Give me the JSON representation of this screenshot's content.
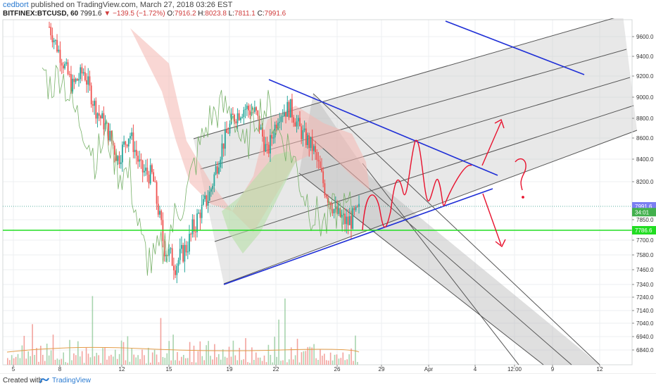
{
  "header": {
    "author": "cedbort",
    "published_text": "published on TradingView.com, March 27, 2018 03:26 EST",
    "symbol": "BITFINEX:BTCUSD, 60",
    "last": "7991.6",
    "change": "−139.5 (−1.72%)",
    "o_label": "O:",
    "o": "7916.2",
    "h_label": "H:",
    "h": "8023.8",
    "l_label": "L:",
    "l": "7811.1",
    "c_label": "C:",
    "c": "7991.6"
  },
  "footer": {
    "created": "Created with",
    "brand": "TradingView"
  },
  "colors": {
    "up": "#26a69a",
    "down": "#ef5350",
    "cloud_red": "#f4b6b1",
    "cloud_green": "#b7dfa8",
    "trend_blue": "#1f2fd6",
    "level_green": "#22dd22",
    "annotation_red": "#e8112d",
    "channel_fill": "#c8c8c8"
  },
  "chart_data": {
    "type": "candlestick",
    "title": "",
    "ylabel": "",
    "xlabel": "",
    "ylim": [
      6740,
      9860
    ],
    "y_scale": "linear",
    "x_ticks": [
      "5",
      "8",
      "12",
      "15",
      "19",
      "22",
      "26",
      "29",
      "Apr",
      "4",
      "12:00",
      "9",
      "12"
    ],
    "y_ticks": [
      "9600.0",
      "9400.0",
      "9200.0",
      "9000.0",
      "8800.0",
      "8600.0",
      "8400.0",
      "8200.0",
      "7850.0",
      "7700.0",
      "7580.0",
      "7460.0",
      "7340.0",
      "7240.0",
      "7140.0",
      "7040.0",
      "6940.0",
      "6840.0"
    ],
    "price_labels": [
      {
        "text": "7991.6",
        "value": 7991.6,
        "color": "#7b7ef2"
      },
      {
        "text": "34:01",
        "value": 7930,
        "color": "#42b04d"
      },
      {
        "text": "7786.6",
        "value": 7786.6,
        "color": "#22dd22"
      }
    ],
    "support_level": 7786.6,
    "current_price": 7991.6,
    "series": [
      {
        "name": "",
        "values": [
          9700,
          9400,
          9100,
          9250,
          8900,
          8700,
          8400,
          8650,
          8300,
          8250,
          7650,
          7500,
          7650,
          7900,
          8100,
          8500,
          8800,
          8900,
          8850,
          8450,
          8850,
          8900,
          8650,
          8500,
          8150,
          7920,
          7830,
          7950
        ]
      }
    ],
    "trendlines": [
      {
        "name": "",
        "from": [
          "Mar 19",
          7340
        ],
        "to": [
          "Apr 4",
          8160
        ]
      },
      {
        "name": "",
        "from": [
          "Mar 21",
          9150
        ],
        "to": [
          "Apr 4",
          8250
        ]
      },
      {
        "name": "",
        "from": [
          "Apr 2",
          9800
        ],
        "to": [
          "Apr 9",
          9220
        ]
      }
    ],
    "volume": {
      "max": 1000,
      "values": [
        300,
        150,
        700,
        200,
        400,
        850,
        300,
        200,
        950,
        250,
        500,
        400,
        700,
        300,
        900,
        200,
        600,
        350,
        250,
        700,
        300,
        500
      ]
    }
  }
}
